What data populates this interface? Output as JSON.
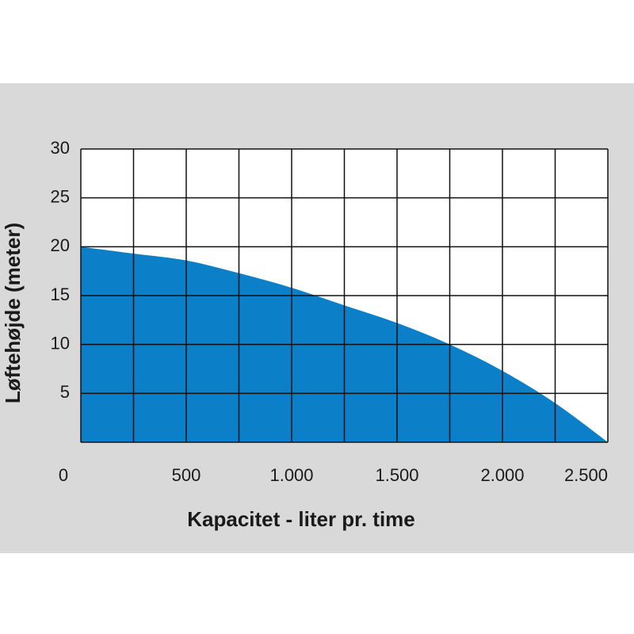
{
  "chart_data": {
    "type": "area",
    "x_label": "Kapacitet - liter pr. time",
    "y_label": "Løftehøjde (meter)",
    "x": [
      0,
      250,
      500,
      750,
      1000,
      1250,
      1500,
      1750,
      2000,
      2250,
      2500
    ],
    "values": [
      20,
      19.3,
      18.6,
      17.3,
      15.8,
      14,
      12.2,
      10,
      7.3,
      4,
      0
    ],
    "color": "#0b7fc7",
    "xlim": [
      0,
      2500
    ],
    "ylim": [
      0,
      30
    ],
    "xticks": [
      0,
      500,
      {
        "value": 1000,
        "label": "1.000"
      },
      {
        "value": 1500,
        "label": "1.500"
      },
      {
        "value": 2000,
        "label": "2.000"
      },
      {
        "value": 2500,
        "label": "2.500"
      }
    ],
    "minor_xticks": [
      250,
      750,
      1250,
      1750,
      2250
    ],
    "yticks": [
      5,
      10,
      15,
      20,
      25,
      30
    ],
    "grid": true
  }
}
